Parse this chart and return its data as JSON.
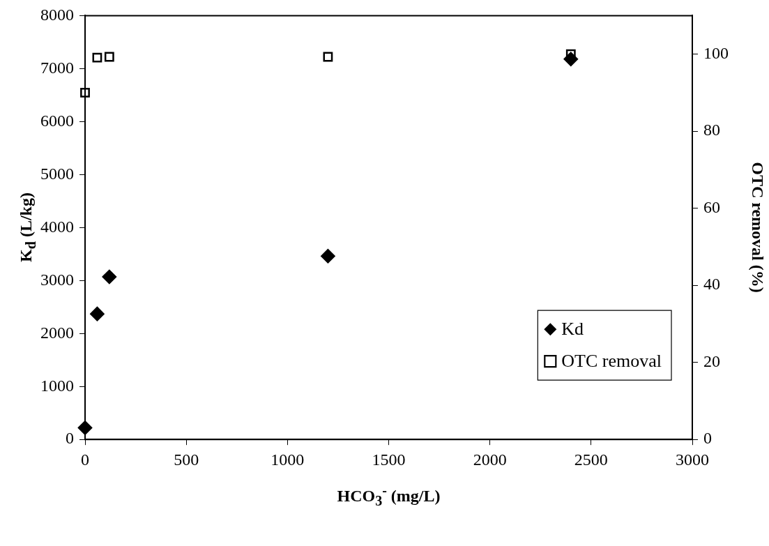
{
  "chart_data": {
    "type": "scatter",
    "xlabel": "HCO$_{3}$$^{-}$ (mg/L)",
    "ylabel": "K$_{d}$ (L/kg)",
    "y2label": "OTC removal (%)",
    "x": [
      0,
      60,
      120,
      1200,
      2400
    ],
    "series": [
      {
        "name": "Kd",
        "color": "#000000",
        "marker": "diamond",
        "values": [
          220,
          2370,
          3070,
          3460,
          7180
        ]
      },
      {
        "name": "OTC removal",
        "color": "#000000",
        "marker": "square",
        "axis": "y2",
        "values": [
          90.0,
          99.1,
          99.3,
          99.3,
          100.0
        ]
      }
    ],
    "xlim": [
      0,
      3000
    ],
    "xticks": [
      0,
      500,
      1000,
      1500,
      2000,
      2500,
      3000
    ],
    "ylim": [
      0,
      8000
    ],
    "yticks": [
      0,
      1000,
      2000,
      3000,
      4000,
      5000,
      6000,
      7000,
      8000
    ],
    "y2lim": [
      0,
      110
    ],
    "y2ticks": [
      0,
      20,
      40,
      60,
      80,
      100
    ],
    "grid": false,
    "legend": "bottom right"
  }
}
